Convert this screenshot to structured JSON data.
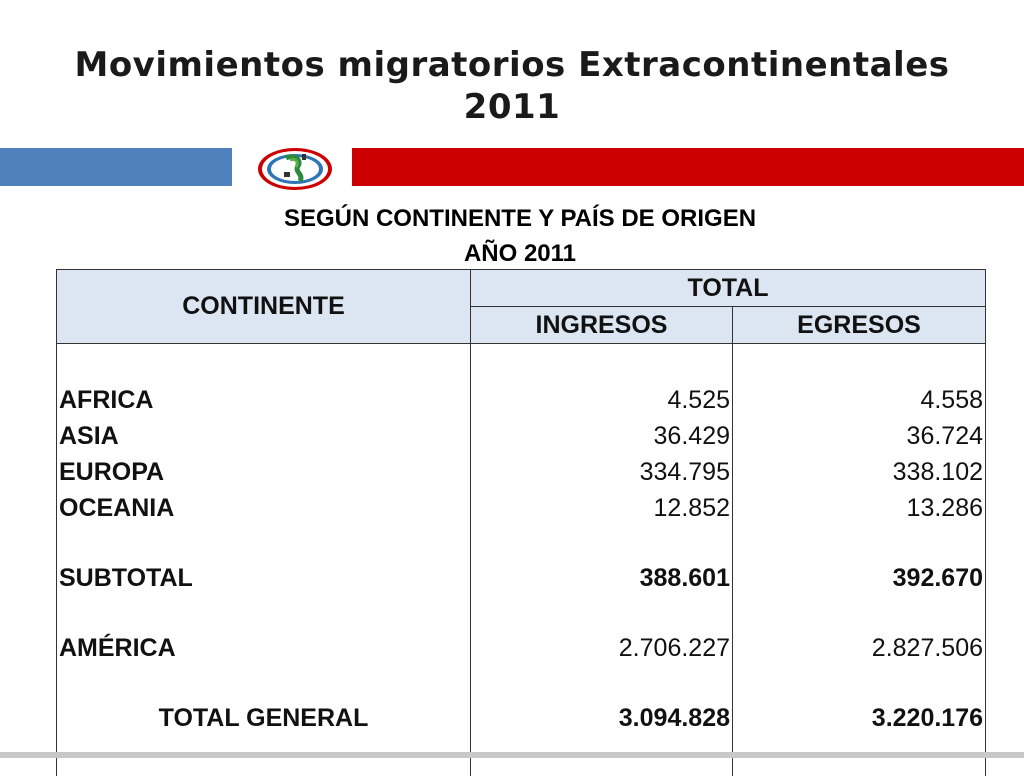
{
  "slide": {
    "title_line1": "Movimientos migratorios Extracontinentales",
    "title_line2": "2011",
    "subtitle_line1": "SEGÚN CONTINENTE Y  PAÍS DE ORIGEN",
    "subtitle_line2": "AÑO 2011",
    "colors": {
      "blue_band": "#4f82bd",
      "red_band": "#cc0000",
      "header_fill": "#dce6f2"
    },
    "logo_icon": "migraciones-logo-icon"
  },
  "table": {
    "headers": {
      "continente": "CONTINENTE",
      "total": "TOTAL",
      "ingresos": "INGRESOS",
      "egresos": "EGRESOS"
    },
    "rows": [
      {
        "label": "AFRICA",
        "ingresos": "4.525",
        "egresos": "4.558"
      },
      {
        "label": "ASIA",
        "ingresos": "36.429",
        "egresos": "36.724"
      },
      {
        "label": "EUROPA",
        "ingresos": "334.795",
        "egresos": "338.102"
      },
      {
        "label": "OCEANIA",
        "ingresos": "12.852",
        "egresos": "13.286"
      }
    ],
    "subtotal": {
      "label": "SUBTOTAL",
      "ingresos": "388.601",
      "egresos": "392.670"
    },
    "america": {
      "label": "AMÉRICA",
      "ingresos": "2.706.227",
      "egresos": "2.827.506"
    },
    "total_general": {
      "label": "TOTAL GENERAL",
      "ingresos": "3.094.828",
      "egresos": "3.220.176"
    }
  }
}
